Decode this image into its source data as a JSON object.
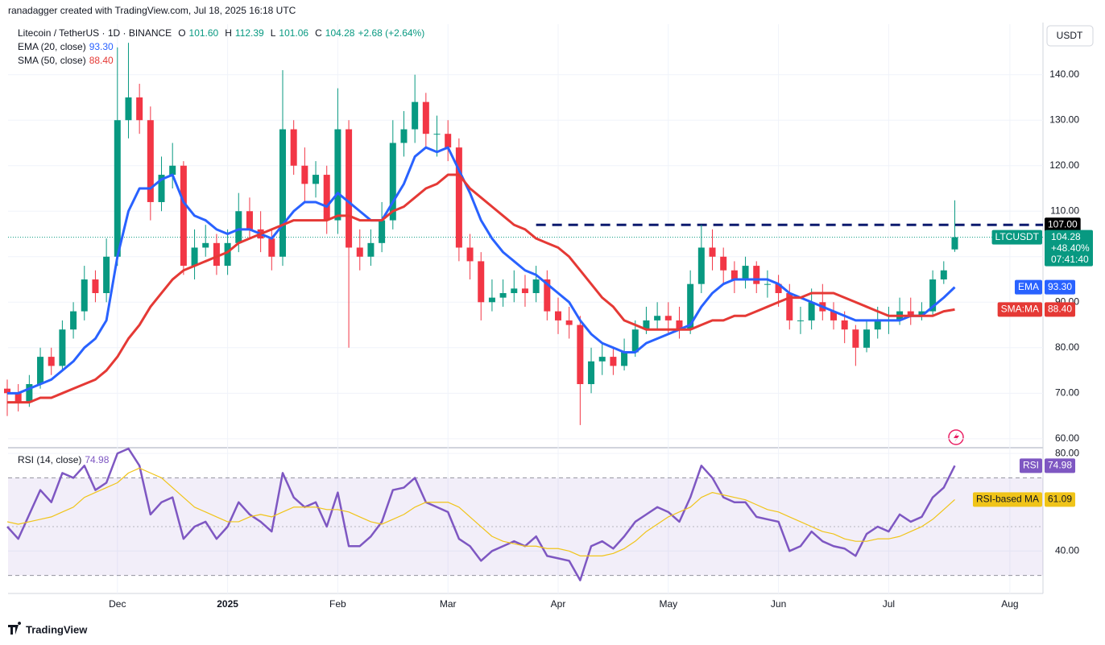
{
  "header": {
    "credit": "ranadagger created with TradingView.com, Jul 18, 2025 16:18 UTC"
  },
  "footer": {
    "brand": "TradingView"
  },
  "chart_data": [
    {
      "type": "candlestick",
      "title": "Litecoin / TetherUS · 1D · BINANCE",
      "currency": "USDT",
      "ohlc_legend": [
        {
          "key": "O",
          "value": "101.60"
        },
        {
          "key": "H",
          "value": "112.39"
        },
        {
          "key": "L",
          "value": "101.06"
        },
        {
          "key": "C",
          "value": "104.28"
        }
      ],
      "change": "+2.68 (+2.64%)",
      "categories": [
        null,
        null,
        null,
        null,
        null,
        null,
        null,
        null,
        null,
        null,
        "Dec",
        null,
        null,
        null,
        null,
        null,
        null,
        null,
        null,
        null,
        "2025",
        null,
        null,
        null,
        null,
        null,
        null,
        null,
        null,
        null,
        "Feb",
        null,
        null,
        null,
        null,
        null,
        null,
        null,
        null,
        null,
        "Mar",
        null,
        null,
        null,
        null,
        null,
        null,
        null,
        null,
        null,
        "Apr",
        null,
        null,
        null,
        null,
        null,
        null,
        null,
        null,
        null,
        "May",
        null,
        null,
        null,
        null,
        null,
        null,
        null,
        null,
        null,
        "Jun",
        null,
        null,
        null,
        null,
        null,
        null,
        null,
        null,
        null,
        "Jul",
        null,
        null,
        null,
        null,
        null,
        null,
        null,
        null,
        null,
        null,
        "Aug",
        null,
        null,
        null
      ],
      "open": [
        71,
        70,
        68,
        72,
        78,
        76,
        84,
        88,
        95,
        92,
        100,
        130,
        135,
        130,
        112,
        118,
        120,
        98,
        102,
        103,
        98,
        103,
        110,
        106,
        104,
        100,
        128,
        120,
        116,
        118,
        108,
        128,
        102,
        100,
        103,
        108,
        125,
        128,
        134,
        127,
        127,
        124,
        102,
        99,
        90,
        91,
        92,
        93,
        92,
        95,
        88,
        86,
        85,
        72,
        77,
        78,
        76,
        79,
        84,
        86,
        87,
        86,
        84,
        94,
        102,
        100,
        97,
        95,
        98,
        94,
        94,
        92,
        86,
        86,
        90,
        88,
        86,
        84,
        80,
        84,
        86,
        86,
        88,
        87,
        88,
        95,
        101.6,
        null,
        null,
        null,
        null,
        null,
        null,
        null,
        null
      ],
      "high": [
        73,
        72,
        74,
        80,
        80,
        86,
        90,
        98,
        97,
        104,
        146,
        147,
        138,
        133,
        122,
        125,
        121,
        106,
        107,
        105,
        106,
        114,
        113,
        110,
        106,
        141,
        130,
        124,
        121,
        120,
        137,
        130,
        106,
        106,
        112,
        130,
        132,
        140,
        136,
        131,
        130,
        126,
        105,
        101,
        95,
        95,
        97,
        96,
        98,
        97,
        91,
        89,
        87,
        80,
        81,
        80,
        82,
        86,
        89,
        90,
        90,
        89,
        97,
        107,
        106,
        102,
        99,
        100,
        99,
        97,
        96,
        94,
        89,
        93,
        94,
        90,
        88,
        85,
        86,
        89,
        89,
        91,
        91,
        90,
        97,
        99,
        112.39,
        null,
        null,
        null,
        null,
        null,
        null,
        null,
        null
      ],
      "low": [
        65,
        66,
        67,
        71,
        74,
        75,
        82,
        86,
        90,
        90,
        98,
        126,
        127,
        108,
        110,
        115,
        96,
        95,
        100,
        96,
        96,
        101,
        104,
        101,
        97,
        98,
        118,
        112,
        113,
        105,
        105,
        80,
        97,
        98,
        101,
        106,
        122,
        125,
        124,
        122,
        121,
        99,
        95,
        86,
        88,
        89,
        90,
        89,
        90,
        86,
        83,
        82,
        63,
        70,
        74,
        74,
        75,
        78,
        83,
        84,
        83,
        82,
        83,
        92,
        97,
        94,
        92,
        93,
        92,
        91,
        89,
        84,
        83,
        84,
        86,
        84,
        81,
        76,
        79,
        82,
        83,
        85,
        85,
        86,
        87,
        94,
        101.06,
        null,
        null,
        null,
        null,
        null,
        null,
        null,
        null
      ],
      "close": [
        70,
        68,
        72,
        78,
        76,
        84,
        88,
        95,
        92,
        100,
        130,
        135,
        130,
        112,
        118,
        120,
        98,
        102,
        103,
        98,
        103,
        110,
        106,
        104,
        100,
        128,
        120,
        116,
        118,
        108,
        128,
        102,
        100,
        103,
        108,
        125,
        128,
        134,
        127,
        127,
        124,
        102,
        99,
        90,
        91,
        92,
        93,
        92,
        95,
        88,
        86,
        85,
        72,
        77,
        78,
        76,
        79,
        84,
        86,
        87,
        86,
        84,
        94,
        102,
        100,
        97,
        95,
        98,
        94,
        94,
        92,
        86,
        86,
        90,
        88,
        86,
        84,
        80,
        84,
        86,
        86,
        88,
        87,
        88,
        95,
        97,
        104.28,
        null,
        null,
        null,
        null,
        null,
        null,
        null,
        null
      ],
      "up_color": "#089981",
      "down_color": "#f23645",
      "overlays": [
        {
          "name": "EMA (20, close)",
          "tag": "EMA",
          "color": "#2962ff",
          "last_label": "93.30",
          "values": [
            70,
            70,
            71,
            72,
            73,
            75,
            77,
            80,
            82,
            86,
            100,
            110,
            115,
            115,
            117,
            118,
            112,
            109,
            108,
            106,
            105,
            106,
            106,
            105,
            104,
            107,
            110,
            112,
            112,
            111,
            114,
            112,
            110,
            108,
            108,
            112,
            116,
            122,
            124,
            123,
            124,
            119,
            114,
            108,
            104,
            101,
            99,
            97,
            96,
            94,
            92,
            90,
            86,
            83,
            81,
            80,
            79,
            79,
            81,
            82,
            83,
            84,
            85,
            89,
            92,
            94,
            95,
            95,
            95,
            95,
            94,
            92,
            91,
            90,
            89,
            88,
            87,
            86,
            86,
            86,
            86,
            86,
            87,
            87,
            89,
            91,
            93.3,
            null,
            null,
            null,
            null,
            null,
            null,
            null,
            null
          ]
        },
        {
          "name": "SMA (50, close)",
          "tag": "SMA:MA",
          "color": "#e53935",
          "last_label": "88.40",
          "values": [
            68,
            68,
            68,
            69,
            69,
            70,
            71,
            72,
            73,
            75,
            78,
            82,
            85,
            89,
            92,
            95,
            97,
            98,
            99,
            100,
            101,
            103,
            104,
            105,
            106,
            107,
            108,
            108,
            108,
            108,
            109,
            109,
            108,
            108,
            108,
            110,
            111,
            113,
            115,
            116,
            118,
            118,
            115,
            113,
            111,
            109,
            107,
            106,
            104,
            103,
            102,
            100,
            97,
            94,
            91,
            89,
            86,
            85,
            84,
            84,
            84,
            84,
            84,
            85,
            86,
            86,
            87,
            87,
            88,
            89,
            90,
            91,
            91,
            92,
            92,
            92,
            91,
            90,
            89,
            88,
            87,
            87,
            87,
            87,
            87,
            88,
            88.4,
            null,
            null,
            null,
            null,
            null,
            null,
            null,
            null
          ]
        }
      ],
      "price_tag": {
        "symbol": "LTCUSDT",
        "value": 104.28,
        "value_label": "104.28",
        "change": "+48.40%",
        "countdown": "07:41:40"
      },
      "level": {
        "value": 107,
        "label": "107.00"
      },
      "ylim": [
        58.2,
        151.1
      ],
      "yticks": [
        {
          "value": 60,
          "label": "60.00"
        },
        {
          "value": 70,
          "label": "70.00"
        },
        {
          "value": 80,
          "label": "80.00"
        },
        {
          "value": 90,
          "label": "90.00"
        },
        {
          "value": 100,
          "label": "100.00"
        },
        {
          "value": 110,
          "label": "110.00"
        },
        {
          "value": 120,
          "label": "120.00"
        },
        {
          "value": 130,
          "label": "130.00"
        },
        {
          "value": 140,
          "label": "140.00"
        }
      ],
      "grid": true
    },
    {
      "type": "line",
      "title": "RSI (14, close)",
      "series": [
        {
          "name": "RSI",
          "color": "#7e57c2",
          "last_label": "74.98",
          "values": [
            50,
            45,
            55,
            65,
            60,
            72,
            70,
            75,
            65,
            68,
            80,
            82,
            75,
            55,
            60,
            62,
            45,
            50,
            52,
            45,
            50,
            60,
            55,
            52,
            48,
            72,
            62,
            58,
            60,
            50,
            64,
            42,
            42,
            46,
            52,
            65,
            66,
            70,
            60,
            58,
            56,
            45,
            42,
            36,
            40,
            42,
            44,
            42,
            46,
            38,
            37,
            36,
            28,
            42,
            44,
            41,
            46,
            52,
            55,
            58,
            56,
            52,
            62,
            75,
            70,
            62,
            60,
            60,
            54,
            53,
            52,
            40,
            42,
            48,
            44,
            42,
            41,
            38,
            47,
            50,
            48,
            55,
            52,
            54,
            62,
            66,
            74.98
          ]
        },
        {
          "name": "RSI-based MA",
          "color": "#f0c419",
          "last_label": "61.09",
          "values": [
            52,
            51,
            52,
            53,
            54,
            56,
            58,
            62,
            64,
            66,
            68,
            72,
            74,
            72,
            70,
            66,
            62,
            58,
            56,
            54,
            52,
            52,
            54,
            55,
            54,
            56,
            58,
            58,
            58,
            57,
            57,
            56,
            54,
            52,
            51,
            53,
            55,
            58,
            60,
            60,
            60,
            58,
            54,
            50,
            46,
            44,
            43,
            42,
            42,
            41,
            41,
            40,
            38,
            38,
            38,
            39,
            41,
            44,
            48,
            51,
            54,
            56,
            58,
            62,
            64,
            63,
            62,
            61,
            59,
            57,
            56,
            54,
            52,
            50,
            48,
            47,
            45,
            44,
            44,
            45,
            45,
            46,
            48,
            50,
            53,
            57,
            61.09
          ]
        }
      ],
      "upper_band": 70,
      "middle_band": 50,
      "lower_band": 30,
      "ylim": [
        22.6,
        81.7
      ],
      "yticks": [
        {
          "value": 40,
          "label": "40.00"
        },
        {
          "value": 80,
          "label": "80.00"
        }
      ]
    }
  ]
}
